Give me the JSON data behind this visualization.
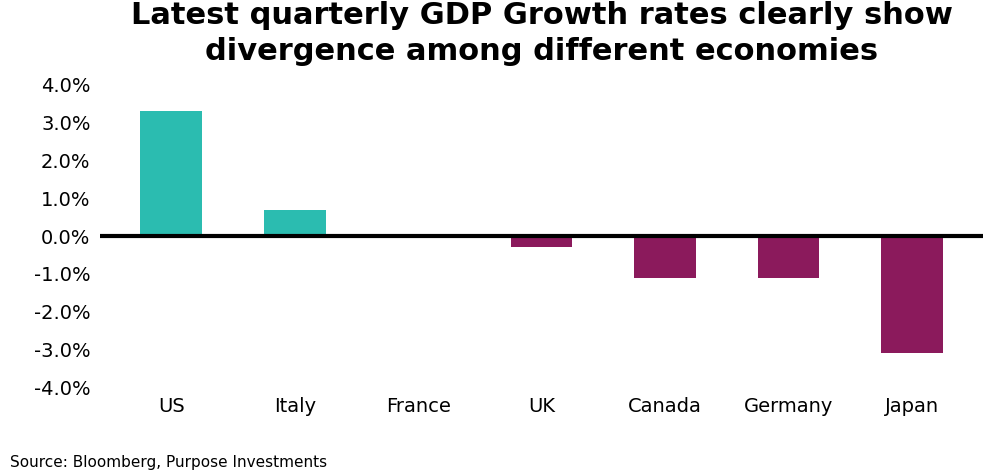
{
  "title": "Latest quarterly GDP Growth rates clearly show\ndivergence among different economies",
  "categories": [
    "US",
    "Italy",
    "France",
    "UK",
    "Canada",
    "Germany",
    "Japan"
  ],
  "values": [
    3.3,
    0.7,
    0.0,
    -0.3,
    -1.1,
    -1.1,
    -3.1
  ],
  "colors_positive": "#2BBCB0",
  "colors_negative": "#8B1A5C",
  "color_map": [
    1,
    1,
    1,
    -1,
    -1,
    -1,
    -1
  ],
  "ylim": [
    -4.0,
    4.0
  ],
  "yticks": [
    -4.0,
    -3.0,
    -2.0,
    -1.0,
    0.0,
    1.0,
    2.0,
    3.0,
    4.0
  ],
  "source_text": "Source: Bloomberg, Purpose Investments",
  "background_color": "#FFFFFF",
  "title_fontsize": 22,
  "tick_fontsize": 14,
  "source_fontsize": 11,
  "bar_width": 0.5
}
